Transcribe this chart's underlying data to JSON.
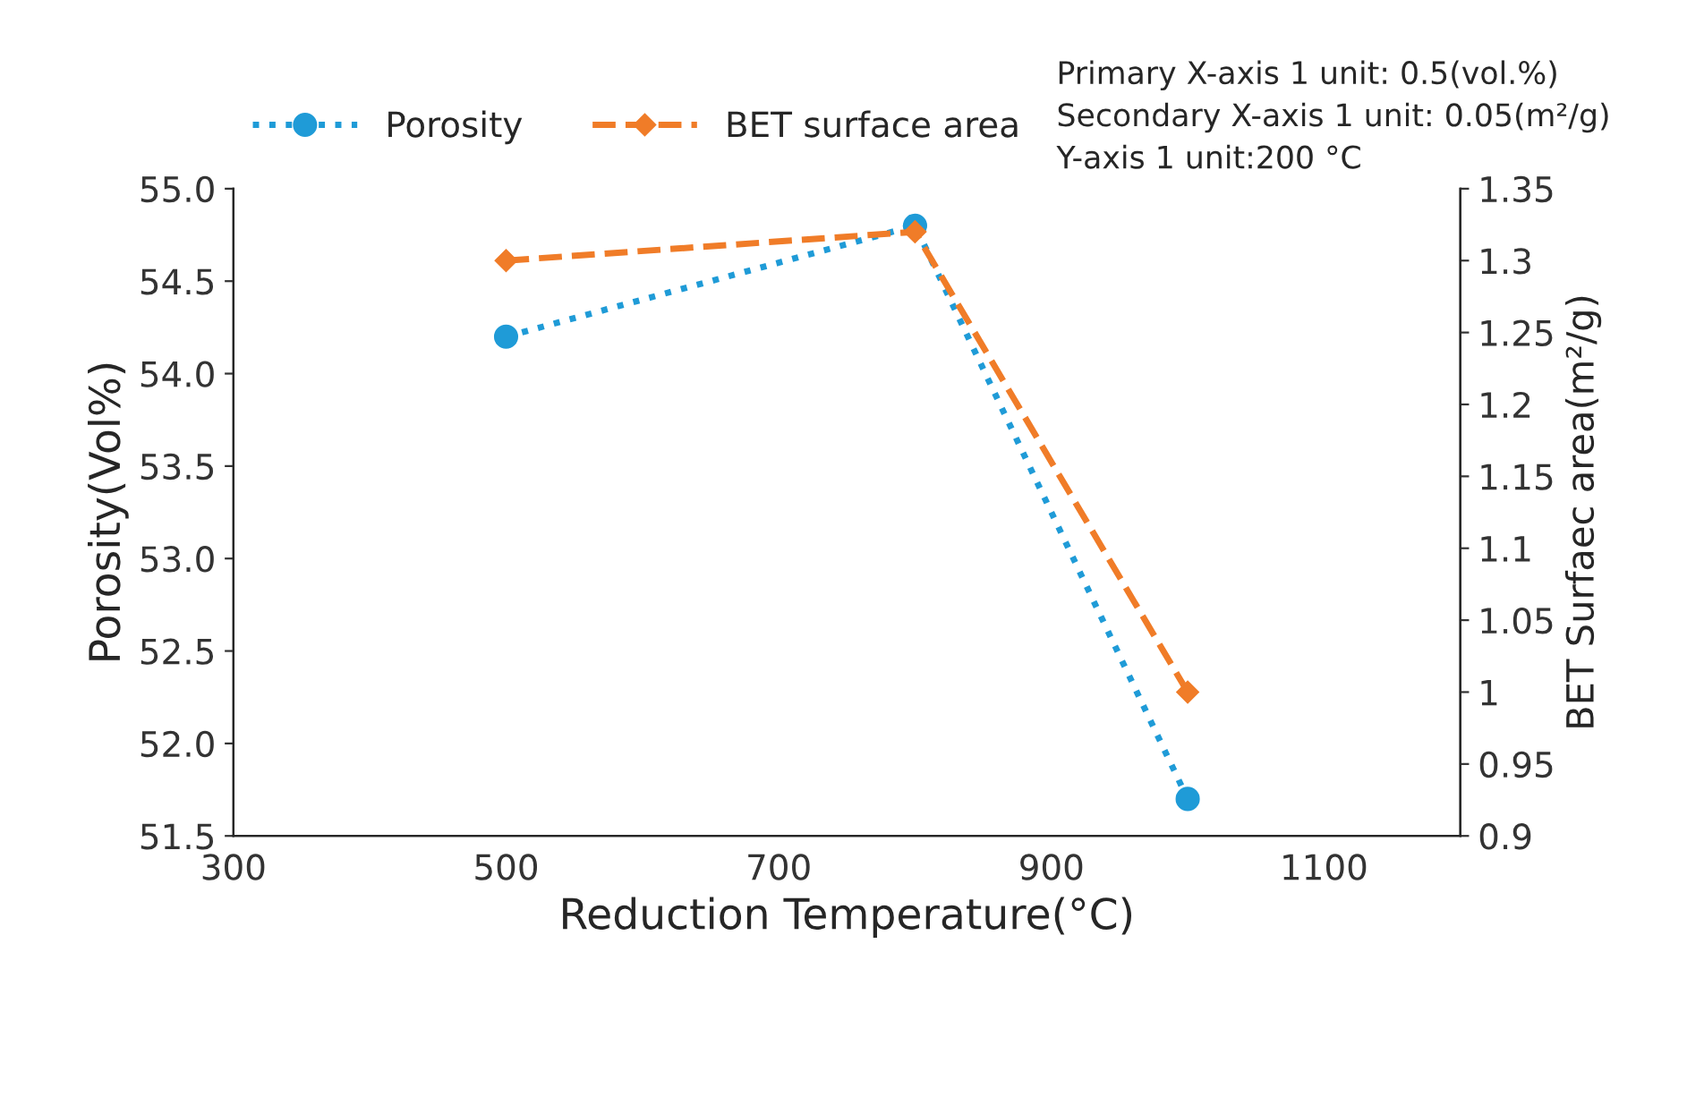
{
  "chart_data": {
    "type": "line",
    "xlabel": "Reduction Temperature(°C)",
    "ylabel": "Porosity(Vol%)",
    "y2label": "BET Surfaec area(m²/g)",
    "x": [
      500,
      800,
      1000
    ],
    "series": [
      {
        "name": "Porosity",
        "color": "#1f9bd7",
        "values": [
          54.2,
          54.8,
          51.7
        ],
        "marker": "circle",
        "line_style": "dotted"
      },
      {
        "name": "BET surface area",
        "color": "#f07c28",
        "values": [
          1.3,
          1.32,
          1.0
        ],
        "marker": "diamond",
        "line_style": "dashed",
        "axis": "y2"
      }
    ],
    "xlim": [
      300,
      1200
    ],
    "xticks": [
      300,
      500,
      700,
      900,
      1100
    ],
    "ylim": [
      51.5,
      55
    ],
    "yticks": [
      {
        "value": 51.5,
        "label": "51.5"
      },
      {
        "value": 52,
        "label": "52.0"
      },
      {
        "value": 52.5,
        "label": "52.5"
      },
      {
        "value": 53,
        "label": "53.0"
      },
      {
        "value": 53.5,
        "label": "53.5"
      },
      {
        "value": 54,
        "label": "54.0"
      },
      {
        "value": 54.5,
        "label": "54.5"
      },
      {
        "value": 55,
        "label": "55.0"
      }
    ],
    "y2lim": [
      0.9,
      1.35
    ],
    "y2ticks": [
      0.9,
      0.95,
      1,
      1.05,
      1.1,
      1.15,
      1.2,
      1.25,
      1.3,
      1.35
    ],
    "legend": "top left",
    "grid": false,
    "annotations": [
      "Primary X-axis 1 unit: 0.5(vol.%)",
      "Secondary X-axis 1 unit: 0.05(m²/g)",
      "Y-axis 1 unit:200 °C"
    ]
  }
}
